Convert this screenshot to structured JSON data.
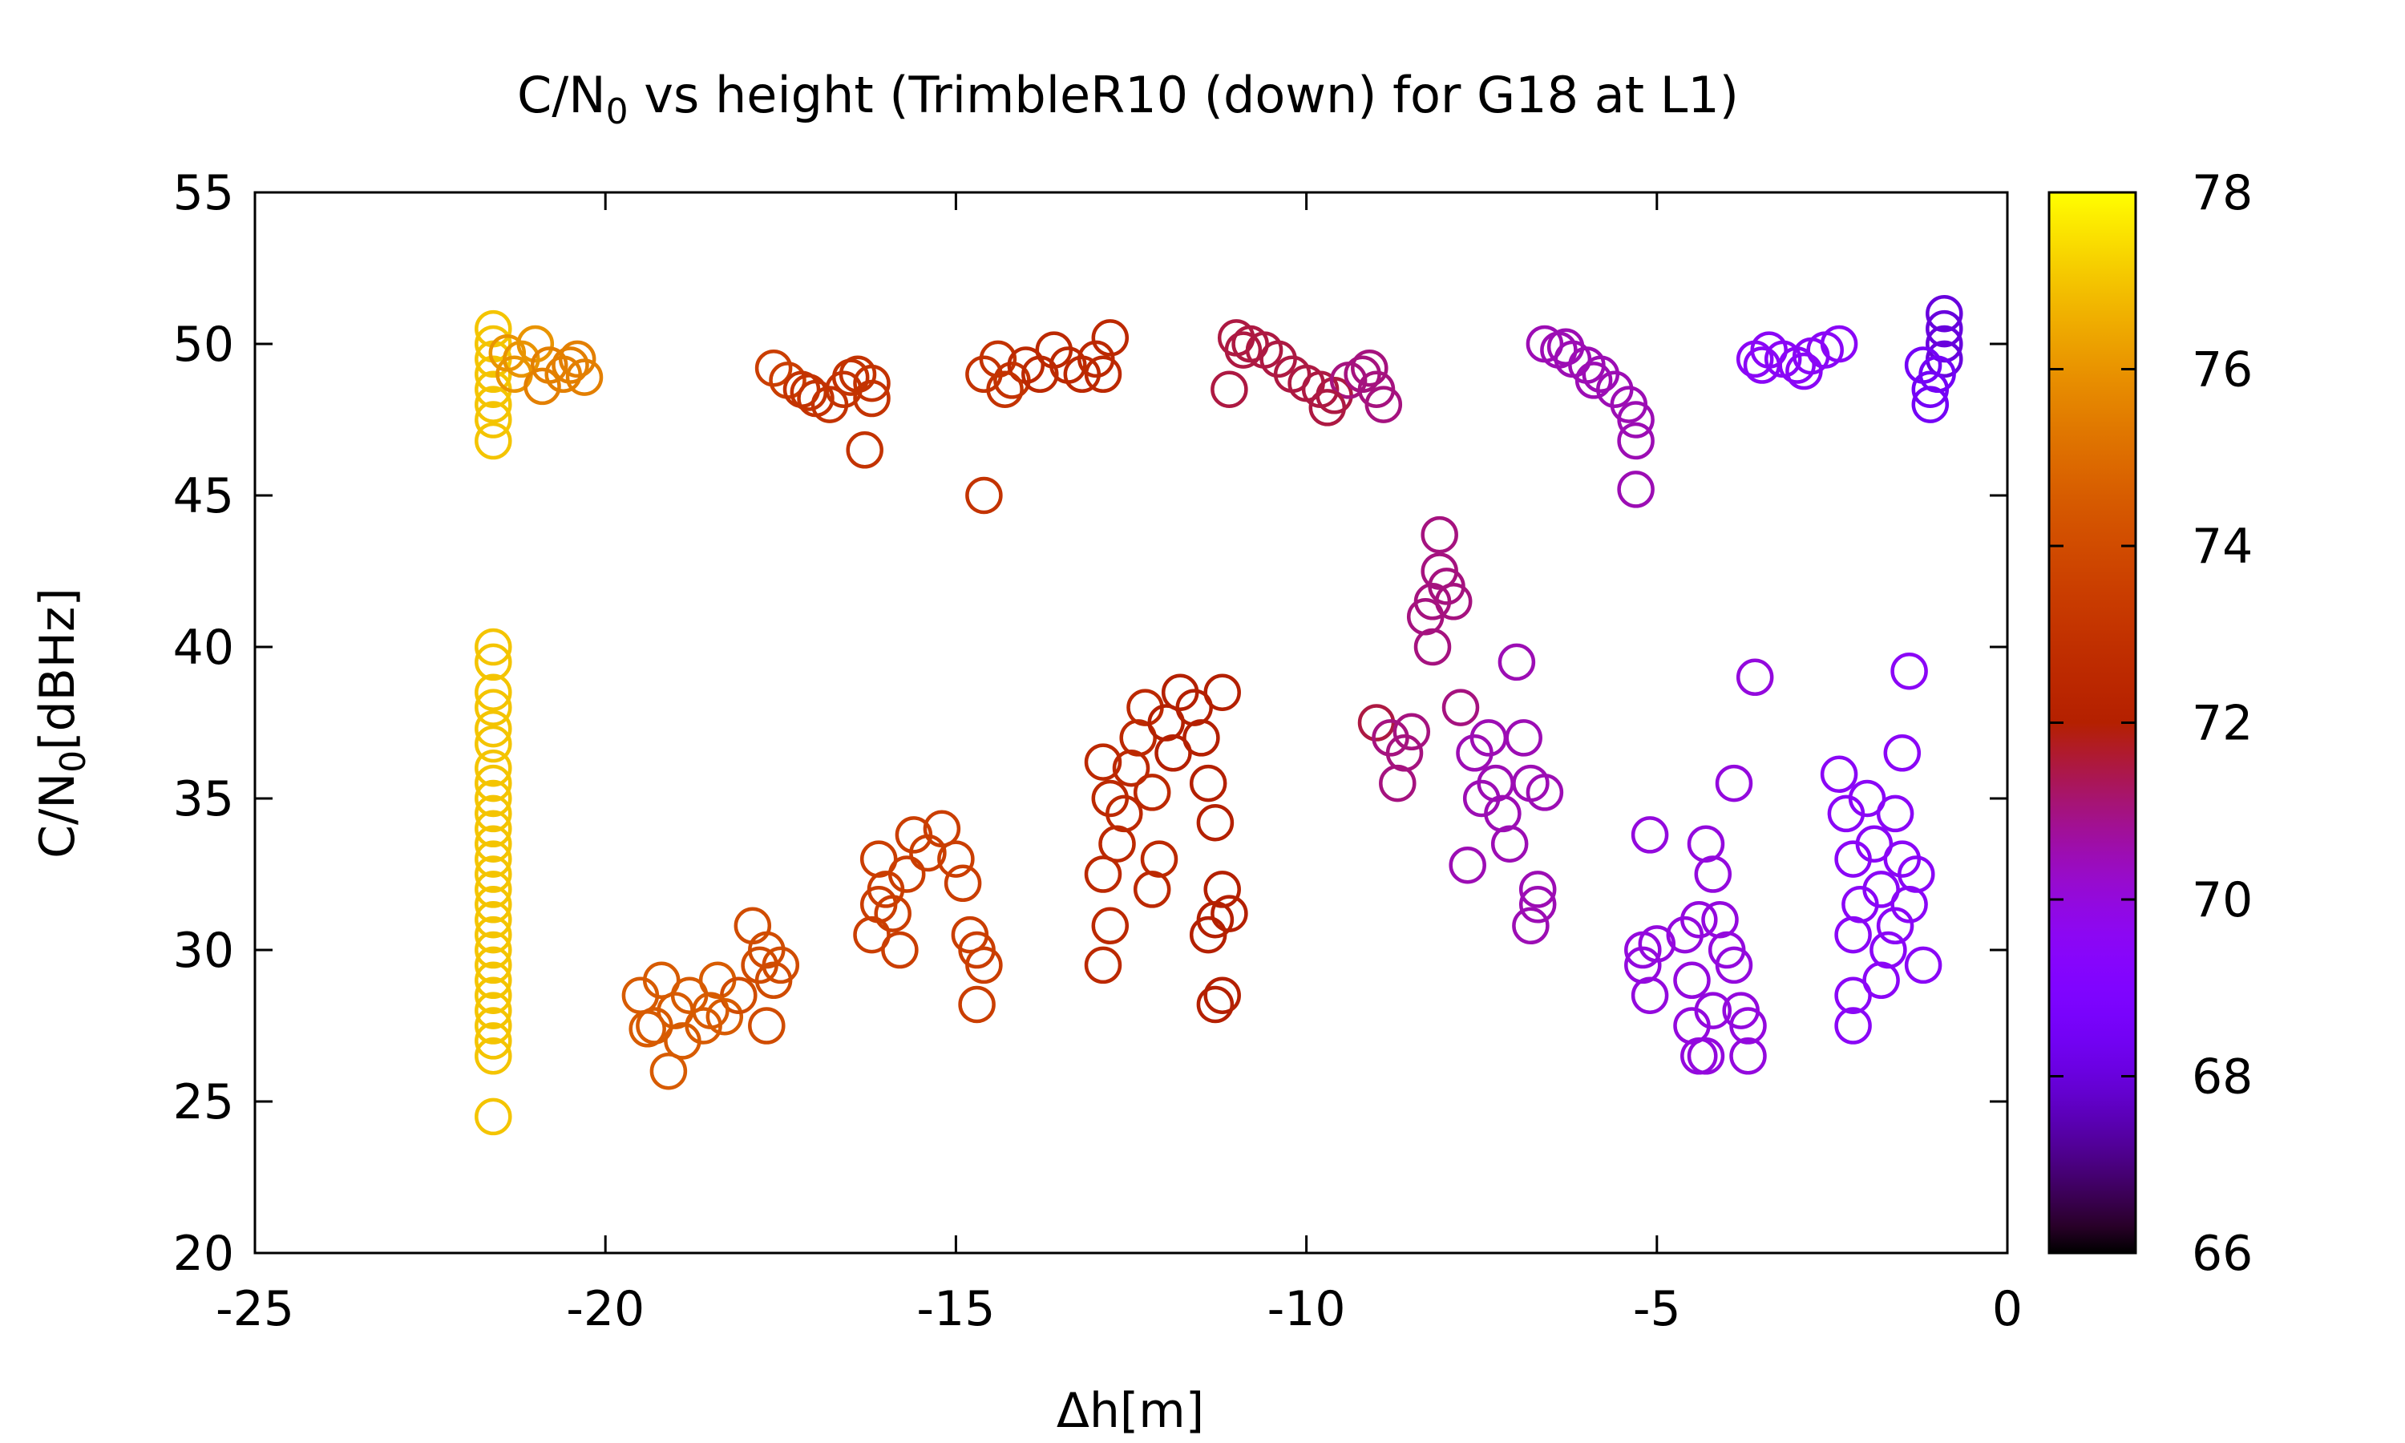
{
  "chart_data": {
    "type": "scatter",
    "title": {
      "prefix": "C/N",
      "sub": "0",
      "suffix": " vs height (TrimbleR10 (down) for G18 at L1)"
    },
    "xlabel": "Δh[m]",
    "ylabel": {
      "prefix": "C/N",
      "sub": "0",
      "suffix": "[dBHz]"
    },
    "xlim": [
      -25,
      0
    ],
    "ylim": [
      20,
      55
    ],
    "xticks": [
      -25,
      -20,
      -15,
      -10,
      -5,
      0
    ],
    "yticks": [
      20,
      25,
      30,
      35,
      40,
      45,
      50,
      55
    ],
    "colorbar": {
      "range": [
        66,
        78
      ],
      "ticks": [
        66,
        68,
        70,
        72,
        74,
        76,
        78
      ],
      "palette": "gnuplot",
      "position": "right"
    },
    "grid": false,
    "legend": "none",
    "marker": "open-circle",
    "points": [
      [
        -21.6,
        50.5,
        77
      ],
      [
        -21.6,
        50.0,
        77
      ],
      [
        -21.6,
        49.5,
        77
      ],
      [
        -21.6,
        49.0,
        77
      ],
      [
        -21.6,
        48.5,
        77
      ],
      [
        -21.6,
        48.0,
        77
      ],
      [
        -21.6,
        47.5,
        77
      ],
      [
        -21.6,
        46.8,
        77
      ],
      [
        -21.4,
        49.7,
        76
      ],
      [
        -21.2,
        49.5,
        76
      ],
      [
        -21.0,
        50.0,
        76
      ],
      [
        -20.8,
        49.3,
        75.5
      ],
      [
        -20.6,
        49.0,
        75.5
      ],
      [
        -20.4,
        49.5,
        75.5
      ],
      [
        -20.3,
        48.9,
        75.5
      ],
      [
        -21.3,
        49.0,
        76
      ],
      [
        -20.9,
        48.6,
        75.5
      ],
      [
        -20.5,
        49.3,
        75.5
      ],
      [
        -21.6,
        40.0,
        77
      ],
      [
        -21.6,
        39.5,
        77
      ],
      [
        -21.6,
        38.5,
        77
      ],
      [
        -21.6,
        38.0,
        77
      ],
      [
        -21.6,
        37.3,
        77
      ],
      [
        -21.6,
        36.8,
        77
      ],
      [
        -21.6,
        36.0,
        77
      ],
      [
        -21.6,
        35.5,
        77
      ],
      [
        -21.6,
        35.0,
        77
      ],
      [
        -21.6,
        34.5,
        77
      ],
      [
        -21.6,
        34.0,
        77
      ],
      [
        -21.6,
        33.5,
        77
      ],
      [
        -21.6,
        33.0,
        77
      ],
      [
        -21.6,
        32.5,
        77
      ],
      [
        -21.6,
        32.0,
        77
      ],
      [
        -21.6,
        31.5,
        77
      ],
      [
        -21.6,
        31.0,
        77
      ],
      [
        -21.6,
        30.5,
        77
      ],
      [
        -21.6,
        30.0,
        77
      ],
      [
        -21.6,
        29.5,
        77
      ],
      [
        -21.6,
        29.0,
        77
      ],
      [
        -21.6,
        28.5,
        77
      ],
      [
        -21.6,
        28.0,
        77
      ],
      [
        -21.6,
        27.5,
        77
      ],
      [
        -21.6,
        27.0,
        77
      ],
      [
        -21.6,
        26.5,
        77
      ],
      [
        -21.6,
        24.5,
        77
      ],
      [
        -17.6,
        49.2,
        73.5
      ],
      [
        -17.4,
        48.8,
        73.5
      ],
      [
        -17.2,
        48.5,
        73
      ],
      [
        -17.0,
        48.2,
        73
      ],
      [
        -16.8,
        48.0,
        73
      ],
      [
        -16.6,
        48.5,
        73
      ],
      [
        -16.4,
        49.0,
        73
      ],
      [
        -16.2,
        48.7,
        73
      ],
      [
        -16.2,
        48.2,
        73
      ],
      [
        -16.3,
        46.5,
        73
      ],
      [
        -17.1,
        48.4,
        73
      ],
      [
        -16.5,
        48.9,
        73
      ],
      [
        -14.6,
        49.0,
        73
      ],
      [
        -14.4,
        49.5,
        73
      ],
      [
        -14.2,
        48.8,
        73
      ],
      [
        -14.0,
        49.3,
        72.5
      ],
      [
        -13.8,
        49.0,
        72.5
      ],
      [
        -13.6,
        49.8,
        72.5
      ],
      [
        -13.4,
        49.3,
        72.5
      ],
      [
        -13.2,
        49.0,
        72.5
      ],
      [
        -13.0,
        49.5,
        72.5
      ],
      [
        -12.8,
        50.2,
        72.5
      ],
      [
        -12.9,
        49.0,
        72.5
      ],
      [
        -14.3,
        48.5,
        73
      ],
      [
        -14.6,
        45.0,
        73
      ],
      [
        -11.0,
        50.2,
        71.5
      ],
      [
        -10.8,
        50.0,
        71.5
      ],
      [
        -10.6,
        49.8,
        71.5
      ],
      [
        -10.4,
        49.5,
        71.5
      ],
      [
        -10.2,
        49.0,
        71.5
      ],
      [
        -10.0,
        48.7,
        71.5
      ],
      [
        -9.8,
        48.5,
        71.5
      ],
      [
        -9.6,
        48.3,
        71.5
      ],
      [
        -9.4,
        48.8,
        71
      ],
      [
        -9.2,
        49.0,
        71
      ],
      [
        -9.0,
        48.5,
        71
      ],
      [
        -8.9,
        48.0,
        71
      ],
      [
        -11.1,
        48.5,
        71.5
      ],
      [
        -10.9,
        49.8,
        71.5
      ],
      [
        -9.7,
        47.9,
        71.5
      ],
      [
        -9.1,
        49.2,
        71
      ],
      [
        -6.6,
        50.0,
        70.5
      ],
      [
        -6.4,
        49.8,
        70.5
      ],
      [
        -6.2,
        49.5,
        70.5
      ],
      [
        -6.0,
        49.3,
        70.5
      ],
      [
        -5.8,
        49.0,
        70.5
      ],
      [
        -5.6,
        48.5,
        70.5
      ],
      [
        -5.4,
        48.0,
        70.5
      ],
      [
        -5.3,
        47.5,
        70.5
      ],
      [
        -5.3,
        46.8,
        70.5
      ],
      [
        -5.3,
        45.2,
        70.5
      ],
      [
        -6.3,
        49.9,
        70.5
      ],
      [
        -5.9,
        48.8,
        70.5
      ],
      [
        -3.6,
        49.5,
        69.5
      ],
      [
        -3.4,
        49.8,
        69.5
      ],
      [
        -3.2,
        49.5,
        69.5
      ],
      [
        -3.0,
        49.3,
        69.5
      ],
      [
        -2.8,
        49.6,
        69.5
      ],
      [
        -2.6,
        49.8,
        69.5
      ],
      [
        -2.4,
        50.0,
        69.5
      ],
      [
        -3.5,
        49.3,
        69.5
      ],
      [
        -2.9,
        49.1,
        69.5
      ],
      [
        -0.9,
        51.0,
        68
      ],
      [
        -0.9,
        50.5,
        68
      ],
      [
        -0.9,
        50.0,
        68
      ],
      [
        -0.9,
        49.5,
        68
      ],
      [
        -1.0,
        49.0,
        68.5
      ],
      [
        -1.1,
        48.5,
        68.5
      ],
      [
        -1.2,
        49.3,
        68.5
      ],
      [
        -1.1,
        48.0,
        68.5
      ],
      [
        -19.5,
        28.5,
        74.5
      ],
      [
        -19.3,
        27.5,
        74.5
      ],
      [
        -19.2,
        29.0,
        74.5
      ],
      [
        -19.0,
        28.0,
        74.5
      ],
      [
        -18.9,
        27.0,
        74.5
      ],
      [
        -19.1,
        26.0,
        74.5
      ],
      [
        -18.8,
        28.5,
        74.5
      ],
      [
        -18.6,
        27.5,
        74.5
      ],
      [
        -18.4,
        29.0,
        74.5
      ],
      [
        -18.3,
        27.8,
        74.5
      ],
      [
        -18.1,
        28.5,
        74
      ],
      [
        -17.9,
        30.8,
        74
      ],
      [
        -17.8,
        29.5,
        74
      ],
      [
        -17.7,
        30.0,
        74
      ],
      [
        -17.6,
        29.0,
        74
      ],
      [
        -17.5,
        29.5,
        74
      ],
      [
        -17.7,
        27.5,
        74
      ],
      [
        -18.5,
        28.0,
        74.5
      ],
      [
        -19.4,
        27.4,
        74.5
      ],
      [
        -16.2,
        30.5,
        73.5
      ],
      [
        -16.1,
        33.0,
        73.5
      ],
      [
        -16.0,
        32.0,
        73.5
      ],
      [
        -15.9,
        31.2,
        73.5
      ],
      [
        -15.8,
        30.0,
        73.5
      ],
      [
        -15.7,
        32.5,
        73.5
      ],
      [
        -15.6,
        33.8,
        73.5
      ],
      [
        -15.4,
        33.2,
        73.5
      ],
      [
        -15.2,
        34.0,
        73.5
      ],
      [
        -15.0,
        33.0,
        73.5
      ],
      [
        -14.9,
        32.2,
        73.5
      ],
      [
        -14.8,
        30.5,
        73.5
      ],
      [
        -14.7,
        30.0,
        73.5
      ],
      [
        -14.6,
        29.5,
        73.5
      ],
      [
        -14.7,
        28.2,
        73.5
      ],
      [
        -16.1,
        31.5,
        73.5
      ],
      [
        -12.9,
        36.2,
        72.5
      ],
      [
        -12.8,
        35.0,
        72.5
      ],
      [
        -12.7,
        33.5,
        72.5
      ],
      [
        -12.6,
        34.5,
        72.5
      ],
      [
        -12.5,
        36.0,
        72.5
      ],
      [
        -12.4,
        37.0,
        72.5
      ],
      [
        -12.3,
        38.0,
        72.5
      ],
      [
        -12.2,
        35.2,
        72.5
      ],
      [
        -12.1,
        33.0,
        72.5
      ],
      [
        -12.0,
        37.5,
        72
      ],
      [
        -11.9,
        36.5,
        72
      ],
      [
        -11.8,
        38.5,
        72
      ],
      [
        -11.6,
        38.0,
        72
      ],
      [
        -11.5,
        37.0,
        72
      ],
      [
        -11.4,
        35.5,
        72
      ],
      [
        -11.3,
        34.2,
        72
      ],
      [
        -11.2,
        38.5,
        72
      ],
      [
        -11.4,
        30.5,
        72
      ],
      [
        -11.3,
        31.0,
        72
      ],
      [
        -11.2,
        32.0,
        72
      ],
      [
        -11.1,
        31.2,
        72
      ],
      [
        -11.3,
        28.2,
        72
      ],
      [
        -11.2,
        28.5,
        72
      ],
      [
        -12.9,
        32.5,
        72.5
      ],
      [
        -12.8,
        30.8,
        72.5
      ],
      [
        -12.9,
        29.5,
        72.5
      ],
      [
        -12.2,
        32.0,
        72.5
      ],
      [
        -9.0,
        37.5,
        71.5
      ],
      [
        -8.8,
        37.0,
        71
      ],
      [
        -8.6,
        36.5,
        71
      ],
      [
        -8.7,
        35.5,
        71
      ],
      [
        -8.5,
        37.2,
        71
      ],
      [
        -8.3,
        41.0,
        71
      ],
      [
        -8.2,
        41.5,
        71
      ],
      [
        -8.1,
        43.7,
        71
      ],
      [
        -8.1,
        42.5,
        71
      ],
      [
        -8.0,
        42.0,
        71
      ],
      [
        -8.2,
        40.0,
        71
      ],
      [
        -7.9,
        41.5,
        71
      ],
      [
        -7.8,
        38.0,
        71
      ],
      [
        -7.6,
        36.5,
        70.5
      ],
      [
        -7.5,
        35.0,
        70.5
      ],
      [
        -7.4,
        37.0,
        70.5
      ],
      [
        -7.3,
        35.5,
        70.5
      ],
      [
        -7.2,
        34.5,
        70.5
      ],
      [
        -7.1,
        33.5,
        70.5
      ],
      [
        -7.0,
        39.5,
        70.5
      ],
      [
        -6.9,
        37.0,
        70.5
      ],
      [
        -6.8,
        35.5,
        70.5
      ],
      [
        -6.7,
        32.0,
        70.5
      ],
      [
        -6.8,
        30.8,
        70.5
      ],
      [
        -6.6,
        35.2,
        70.5
      ],
      [
        -7.7,
        32.8,
        70.5
      ],
      [
        -6.7,
        31.5,
        70.5
      ],
      [
        -5.1,
        33.8,
        70
      ],
      [
        -5.2,
        30.0,
        70
      ],
      [
        -5.2,
        29.5,
        70
      ],
      [
        -5.0,
        30.2,
        70
      ],
      [
        -5.1,
        28.5,
        70
      ],
      [
        -4.6,
        30.5,
        70
      ],
      [
        -4.5,
        29.0,
        70
      ],
      [
        -4.5,
        27.5,
        70
      ],
      [
        -4.4,
        26.5,
        70
      ],
      [
        -4.3,
        33.5,
        70
      ],
      [
        -4.2,
        32.5,
        70
      ],
      [
        -4.1,
        31.0,
        70
      ],
      [
        -4.0,
        30.0,
        70
      ],
      [
        -3.9,
        29.5,
        70
      ],
      [
        -3.8,
        28.0,
        70
      ],
      [
        -3.7,
        27.5,
        70
      ],
      [
        -3.7,
        26.5,
        70
      ],
      [
        -4.2,
        28.0,
        70
      ],
      [
        -3.9,
        35.5,
        70
      ],
      [
        -3.6,
        39.0,
        70
      ],
      [
        -4.4,
        31.0,
        70
      ],
      [
        -4.3,
        26.5,
        70
      ],
      [
        -2.4,
        35.8,
        69.5
      ],
      [
        -2.3,
        34.5,
        69.5
      ],
      [
        -2.2,
        33.0,
        69.5
      ],
      [
        -2.1,
        31.5,
        69.5
      ],
      [
        -2.2,
        30.5,
        69.5
      ],
      [
        -2.2,
        28.5,
        69.5
      ],
      [
        -2.0,
        35.0,
        69.5
      ],
      [
        -1.9,
        33.5,
        69.5
      ],
      [
        -1.8,
        32.0,
        69.5
      ],
      [
        -1.7,
        30.0,
        69.5
      ],
      [
        -1.6,
        34.5,
        69.5
      ],
      [
        -1.5,
        33.0,
        69.5
      ],
      [
        -1.4,
        31.5,
        69.5
      ],
      [
        -1.5,
        36.5,
        69.5
      ],
      [
        -1.4,
        39.2,
        69.5
      ],
      [
        -1.3,
        32.5,
        69.5
      ],
      [
        -1.2,
        29.5,
        69.5
      ],
      [
        -1.8,
        29.0,
        69.5
      ],
      [
        -2.2,
        27.5,
        69.5
      ],
      [
        -1.6,
        30.8,
        69.5
      ]
    ]
  }
}
